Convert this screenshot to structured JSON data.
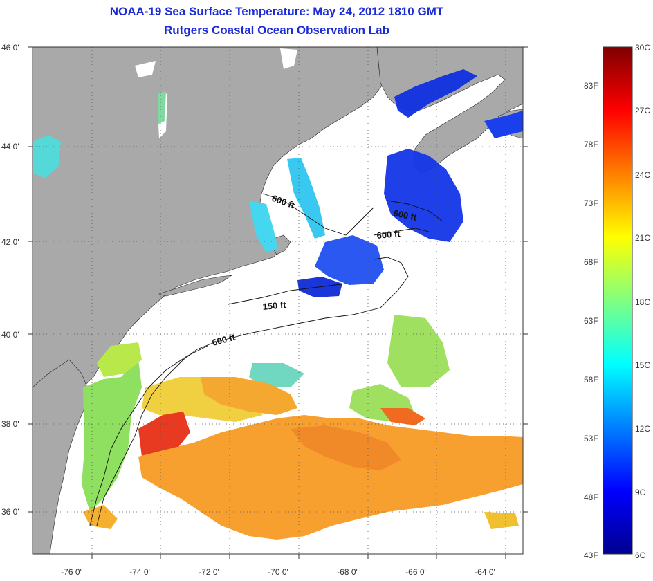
{
  "title": {
    "line1": "NOAA-19 Sea Surface Temperature:  May 24, 2012 1810 GMT",
    "line2": "Rutgers Coastal Ocean Observation Lab"
  },
  "latitude_labels": [
    "46 0'",
    "44 0'",
    "42 0'",
    "40 0'",
    "38 0'",
    "36 0'"
  ],
  "longitude_labels": [
    "-76 0'",
    "-74 0'",
    "-72 0'",
    "-70 0'",
    "-68 0'",
    "-66 0'",
    "-64 0'"
  ],
  "isobath_labels": [
    "600 ft",
    "600 ft",
    "600 ft",
    "150 ft",
    "600 ft"
  ],
  "colorbar": {
    "fahrenheit": [
      "83F",
      "78F",
      "73F",
      "68F",
      "63F",
      "58F",
      "53F",
      "48F",
      "43F"
    ],
    "celsius": [
      "30C",
      "27C",
      "24C",
      "21C",
      "18C",
      "15C",
      "12C",
      "9C",
      "6C"
    ]
  },
  "colors": {
    "land": "#a9a9a9",
    "ocean": "#ffffff",
    "title": "#1b2bd6"
  }
}
